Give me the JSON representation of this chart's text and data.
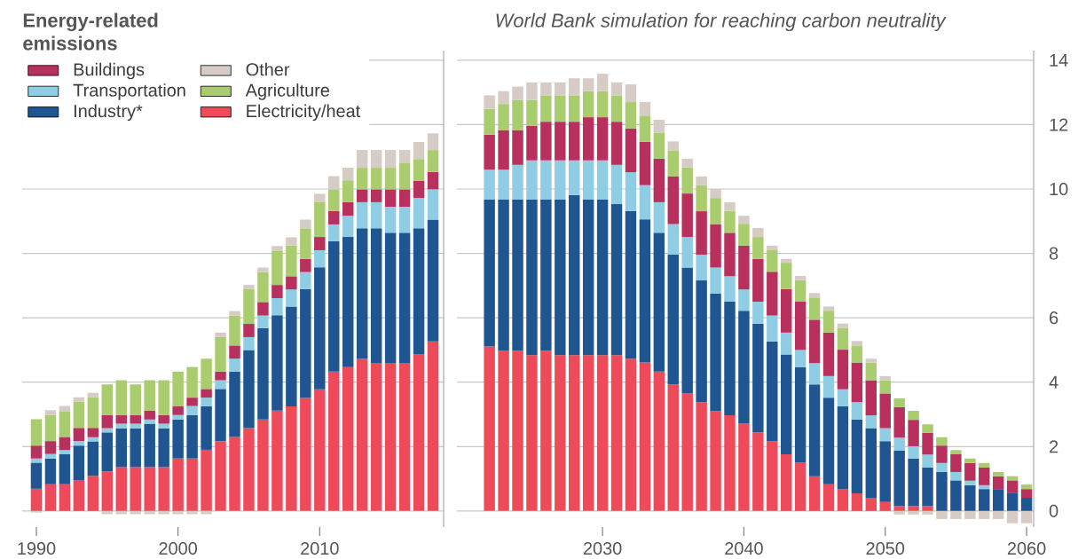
{
  "chart_data": [
    {
      "type": "bar",
      "stacked": true,
      "legend_title": "Energy-related emissions",
      "legend": "top left",
      "grid": "y",
      "tick_labels": "x",
      "x": [
        1990,
        1991,
        1992,
        1993,
        1994,
        1995,
        1996,
        1997,
        1998,
        1999,
        2000,
        2001,
        2002,
        2003,
        2004,
        2005,
        2006,
        2007,
        2008,
        2009,
        2010,
        2011,
        2012,
        2013,
        2014,
        2015,
        2016,
        2017,
        2018
      ],
      "xlim": [
        1989,
        2018.75
      ],
      "xticks": [
        1990,
        2000,
        2010
      ],
      "ylim": [
        -0.5,
        14.3
      ],
      "yticks": [
        0,
        2,
        4,
        6,
        8,
        10,
        12,
        14
      ],
      "series": [
        {
          "name": "Electricity/heat",
          "color": "#ee4a5a",
          "values": [
            0.69,
            0.83,
            0.83,
            0.96,
            1.09,
            1.23,
            1.36,
            1.36,
            1.36,
            1.36,
            1.63,
            1.63,
            1.9,
            2.17,
            2.3,
            2.57,
            2.84,
            3.12,
            3.25,
            3.51,
            3.78,
            4.33,
            4.47,
            4.72,
            4.6,
            4.6,
            4.6,
            4.86,
            5.27
          ]
        },
        {
          "name": "Industry*",
          "color": "#1f5591",
          "values": [
            0.81,
            0.8,
            0.94,
            1.07,
            1.07,
            1.21,
            1.21,
            1.21,
            1.35,
            1.21,
            1.21,
            1.35,
            1.35,
            1.62,
            2.03,
            2.43,
            2.84,
            2.96,
            3.1,
            3.38,
            3.79,
            4.05,
            4.04,
            4.06,
            4.18,
            4.04,
            4.04,
            3.92,
            3.78
          ]
        },
        {
          "name": "Transportation",
          "color": "#8ecde4",
          "values": [
            0.13,
            0.14,
            0.12,
            0.14,
            0.13,
            0.13,
            0.14,
            0.14,
            0.13,
            0.14,
            0.14,
            0.28,
            0.27,
            0.27,
            0.4,
            0.4,
            0.39,
            0.53,
            0.53,
            0.53,
            0.53,
            0.52,
            0.66,
            0.81,
            0.81,
            0.81,
            0.81,
            0.94,
            0.94
          ]
        },
        {
          "name": "Buildings",
          "color": "#b8305e",
          "values": [
            0.4,
            0.4,
            0.41,
            0.41,
            0.29,
            0.41,
            0.27,
            0.27,
            0.28,
            0.27,
            0.28,
            0.26,
            0.27,
            0.27,
            0.41,
            0.41,
            0.42,
            0.41,
            0.41,
            0.41,
            0.41,
            0.42,
            0.42,
            0.4,
            0.4,
            0.54,
            0.54,
            0.54,
            0.54
          ]
        },
        {
          "name": "Agriculture",
          "color": "#a9cc6e",
          "values": [
            0.82,
            0.81,
            0.8,
            0.81,
            0.95,
            0.95,
            1.08,
            0.95,
            0.94,
            1.08,
            1.07,
            0.95,
            0.94,
            1.07,
            0.93,
            1.08,
            0.93,
            1.07,
            0.96,
            0.95,
            1.08,
            0.67,
            0.68,
            0.67,
            0.67,
            0.67,
            0.81,
            0.67,
            0.68
          ]
        },
        {
          "name": "Other",
          "color": "#d6ccc5",
          "values": [
            -0.05,
            0.15,
            0.16,
            0.14,
            0.14,
            -0.1,
            -0.1,
            -0.1,
            -0.1,
            -0.1,
            -0.1,
            -0.1,
            -0.1,
            0.14,
            0.14,
            0.13,
            0.14,
            0.14,
            0.25,
            0.27,
            0.26,
            0.41,
            0.39,
            0.55,
            0.55,
            0.55,
            0.41,
            0.53,
            0.52
          ]
        }
      ]
    },
    {
      "type": "bar",
      "stacked": true,
      "title": "World Bank simulation for reaching carbon neutrality",
      "grid": "y",
      "x": [
        2022,
        2023,
        2024,
        2025,
        2026,
        2027,
        2028,
        2029,
        2030,
        2031,
        2032,
        2033,
        2034,
        2035,
        2036,
        2037,
        2038,
        2039,
        2040,
        2041,
        2042,
        2043,
        2044,
        2045,
        2046,
        2047,
        2048,
        2049,
        2050,
        2051,
        2052,
        2053,
        2054,
        2055,
        2056,
        2057,
        2058,
        2059,
        2060
      ],
      "xlim": [
        2019.7,
        2060.5
      ],
      "xticks": [
        2030,
        2040,
        2050,
        2060
      ],
      "ylim": [
        -0.5,
        14.3
      ],
      "yticks": [
        0,
        2,
        4,
        6,
        8,
        10,
        12,
        14
      ],
      "series": [
        {
          "color": "#ee4a5a",
          "values": [
            5.11,
            4.98,
            4.98,
            4.84,
            4.98,
            4.84,
            4.84,
            4.84,
            4.84,
            4.84,
            4.73,
            4.61,
            4.33,
            3.93,
            3.65,
            3.38,
            3.1,
            2.97,
            2.71,
            2.44,
            2.17,
            1.76,
            1.5,
            1.08,
            0.83,
            0.68,
            0.55,
            0.41,
            0.28,
            0.15,
            0.15,
            0.15,
            0,
            0,
            0,
            0,
            0,
            0,
            0
          ]
        },
        {
          "color": "#1f5591",
          "values": [
            4.56,
            4.69,
            4.69,
            4.83,
            4.69,
            4.83,
            4.97,
            4.83,
            4.83,
            4.69,
            4.59,
            4.45,
            4.31,
            4.03,
            3.91,
            3.78,
            3.65,
            3.53,
            3.51,
            3.38,
            3.1,
            3.1,
            2.96,
            2.85,
            2.69,
            2.57,
            2.29,
            2.16,
            1.89,
            1.73,
            1.48,
            1.2,
            1.21,
            0.95,
            0.8,
            0.68,
            0.68,
            0.55,
            0.41
          ]
        },
        {
          "color": "#8ecde4",
          "values": [
            0.93,
            0.93,
            1.08,
            1.22,
            1.22,
            1.22,
            1.08,
            1.22,
            1.22,
            1.22,
            1.2,
            1.06,
            0.95,
            0.95,
            0.95,
            0.8,
            0.81,
            0.79,
            0.66,
            0.68,
            0.8,
            0.68,
            0.54,
            0.66,
            0.67,
            0.53,
            0.54,
            0.4,
            0.4,
            0.4,
            0.38,
            0.4,
            0.28,
            0.26,
            0.14,
            0.12,
            0,
            0,
            0
          ]
        },
        {
          "color": "#b8305e",
          "values": [
            1.09,
            1.23,
            1.08,
            1.07,
            1.2,
            1.2,
            1.2,
            1.34,
            1.34,
            1.34,
            1.36,
            1.35,
            1.35,
            1.48,
            1.35,
            1.35,
            1.35,
            1.35,
            1.36,
            1.33,
            1.36,
            1.35,
            1.5,
            1.35,
            1.35,
            1.23,
            1.23,
            1.09,
            1.08,
            0.95,
            0.82,
            0.68,
            0.54,
            0.55,
            0.55,
            0.55,
            0.4,
            0.4,
            0.27
          ]
        },
        {
          "color": "#a9cc6e",
          "values": [
            0.8,
            0.81,
            0.94,
            0.81,
            0.82,
            0.82,
            0.82,
            0.81,
            0.81,
            0.82,
            0.82,
            0.81,
            0.8,
            0.81,
            0.81,
            0.81,
            0.81,
            0.68,
            0.68,
            0.68,
            0.67,
            0.82,
            0.67,
            0.69,
            0.68,
            0.68,
            0.53,
            0.55,
            0.41,
            0.27,
            0.28,
            0.26,
            0.26,
            0.13,
            0.14,
            0.14,
            0.13,
            0.13,
            0.14
          ]
        },
        {
          "color": "#d6ccc5",
          "values": [
            0.42,
            0.4,
            0.41,
            0.54,
            0.4,
            0.4,
            0.53,
            0.4,
            0.54,
            0.4,
            0.55,
            0.42,
            0.41,
            0.28,
            0.27,
            0.27,
            0.28,
            0.27,
            0.25,
            0.28,
            0.14,
            0.12,
            0.13,
            0.14,
            0.13,
            0.13,
            0.14,
            0.12,
            0.13,
            -0.11,
            -0.11,
            -0.11,
            -0.25,
            -0.25,
            -0.25,
            -0.25,
            -0.25,
            -0.38,
            -0.38
          ]
        }
      ]
    }
  ]
}
